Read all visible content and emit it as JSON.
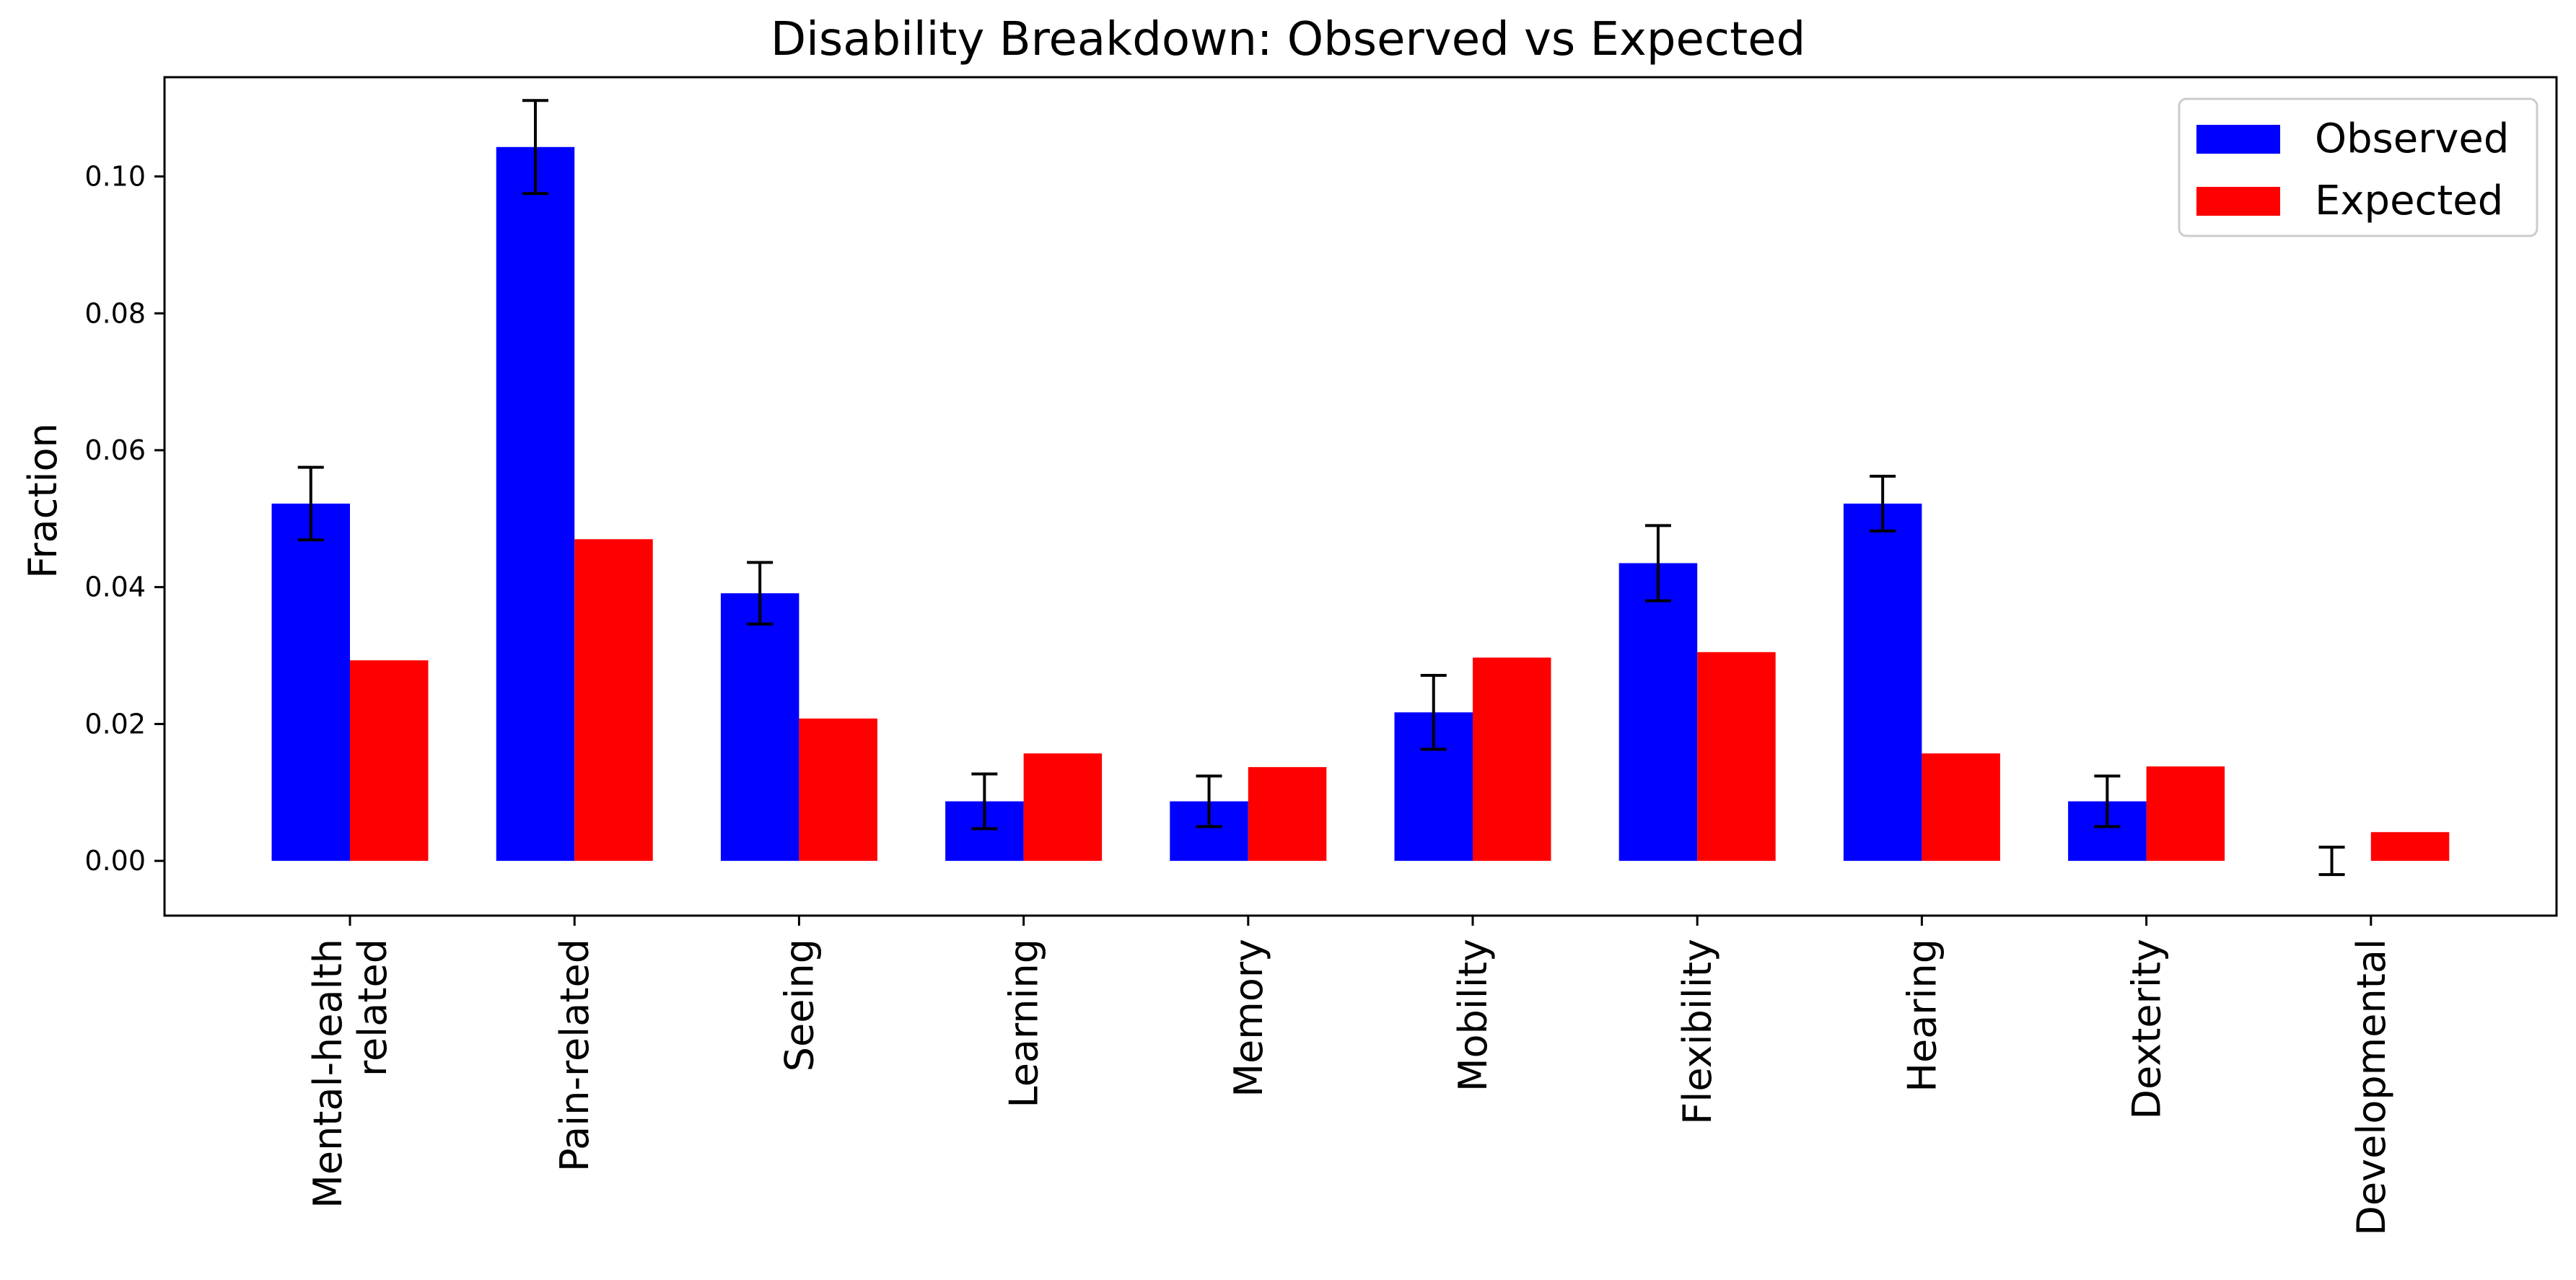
{
  "chart_data": {
    "type": "bar",
    "title": "Disability Breakdown: Observed vs Expected",
    "xlabel": "",
    "ylabel": "Fraction",
    "categories": [
      "Mental-health\nrelated",
      "Pain-related",
      "Seeing",
      "Learning",
      "Memory",
      "Mobility",
      "Flexibility",
      "Hearing",
      "Dexterity",
      "Developmental"
    ],
    "series": [
      {
        "name": "Observed",
        "color": "#0000ff",
        "values": [
          0.0522,
          0.1043,
          0.0391,
          0.0087,
          0.0087,
          0.0217,
          0.0435,
          0.0522,
          0.0087,
          0.0
        ],
        "error": [
          0.0053,
          0.0068,
          0.0045,
          0.004,
          0.0037,
          0.0054,
          0.0055,
          0.004,
          0.0037,
          0.002
        ]
      },
      {
        "name": "Expected",
        "color": "#ff0000",
        "values": [
          0.0293,
          0.047,
          0.0208,
          0.0157,
          0.0137,
          0.0297,
          0.0305,
          0.0157,
          0.0138,
          0.0042
        ]
      }
    ],
    "ylim": [
      -0.008,
      0.1145
    ],
    "yticks": [
      0.0,
      0.02,
      0.04,
      0.06,
      0.08,
      0.1
    ],
    "ytick_labels": [
      "0.00",
      "0.02",
      "0.04",
      "0.06",
      "0.08",
      "0.10"
    ],
    "legend_position": "top-right",
    "grid": false
  }
}
